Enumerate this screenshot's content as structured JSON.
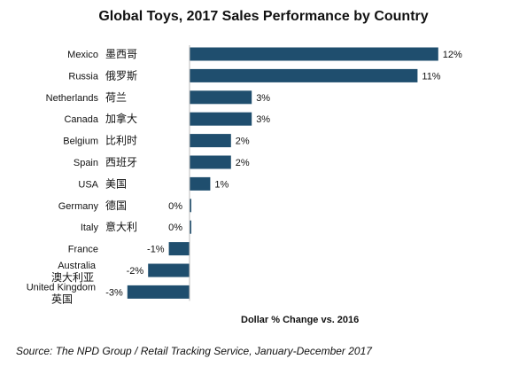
{
  "chart_data": {
    "type": "bar",
    "orientation": "horizontal",
    "title": "Global Toys, 2017 Sales Performance by Country",
    "xlabel": "Dollar % Change vs. 2016",
    "ylabel": "",
    "categories": [
      {
        "en": "Mexico",
        "zh": "墨西哥"
      },
      {
        "en": "Russia",
        "zh": "俄罗斯"
      },
      {
        "en": "Netherlands",
        "zh": "荷兰"
      },
      {
        "en": "Canada",
        "zh": "加拿大"
      },
      {
        "en": "Belgium",
        "zh": "比利时"
      },
      {
        "en": "Spain",
        "zh": "西班牙"
      },
      {
        "en": "USA",
        "zh": "美国"
      },
      {
        "en": "Germany",
        "zh": "德国"
      },
      {
        "en": "Italy",
        "zh": "意大利"
      },
      {
        "en": "France",
        "zh": ""
      },
      {
        "en": "Australia",
        "zh": "澳大利亚"
      },
      {
        "en": "United Kingdom",
        "zh": "英国"
      }
    ],
    "values": [
      12,
      11,
      3,
      3,
      2,
      2,
      1,
      0,
      0,
      -1,
      -2,
      -3
    ],
    "value_labels": [
      "12%",
      "11%",
      "3%",
      "3%",
      "2%",
      "2%",
      "1%",
      "0%",
      "0%",
      "-1%",
      "-2%",
      "-3%"
    ],
    "xlim": [
      -3,
      12
    ],
    "bar_color": "#1f4e6e",
    "grid": false,
    "legend": "none"
  },
  "source": "Source: The NPD Group / Retail Tracking Service, January-December 2017"
}
